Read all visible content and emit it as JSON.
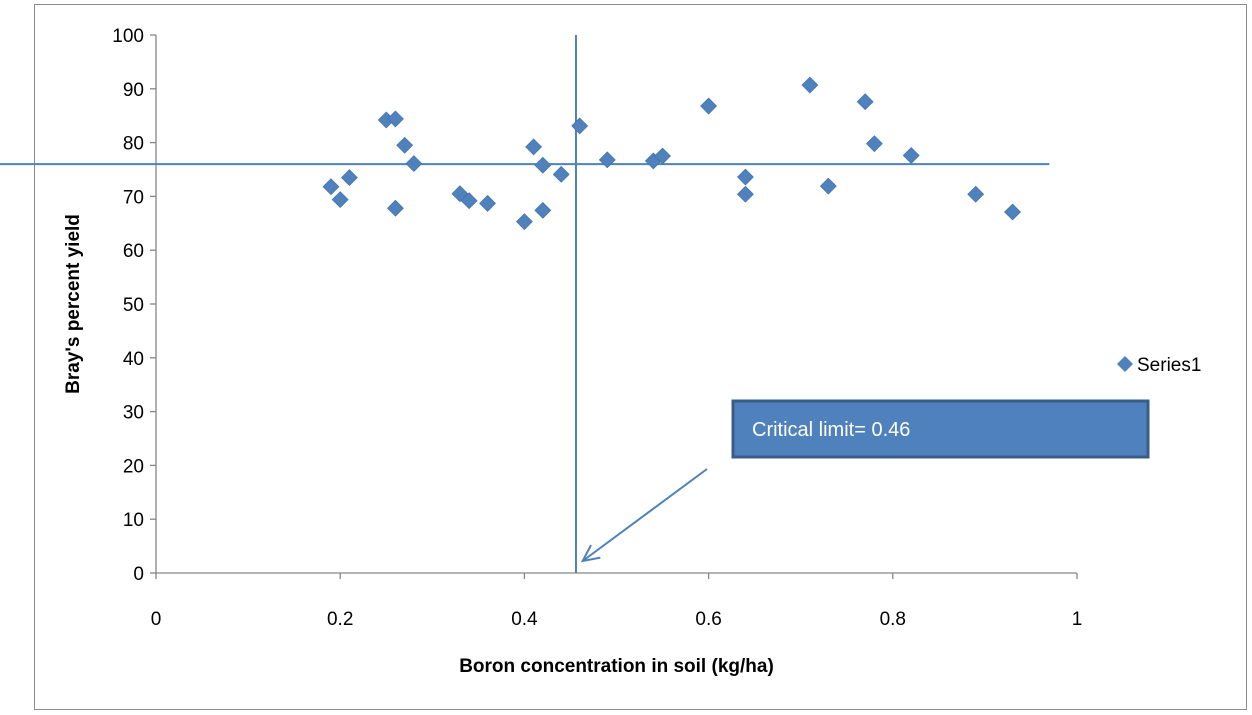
{
  "chart_data": {
    "type": "scatter",
    "title": "",
    "xlabel": "Boron concentration in soil (kg/ha)",
    "ylabel": "Bray's percent yield",
    "xlim": [
      0,
      1
    ],
    "ylim": [
      0,
      100
    ],
    "x_ticks": [
      "0",
      "0.2",
      "0.4",
      "0.6",
      "0.8",
      "1"
    ],
    "y_ticks": [
      "0",
      "10",
      "20",
      "30",
      "40",
      "50",
      "60",
      "70",
      "80",
      "90",
      "100"
    ],
    "grid": false,
    "legend_position": "right",
    "series": [
      {
        "name": "Series1",
        "color": "#4f81bd",
        "marker": "diamond",
        "points": [
          [
            0.19,
            71.8
          ],
          [
            0.2,
            69.4
          ],
          [
            0.21,
            73.5
          ],
          [
            0.25,
            84.2
          ],
          [
            0.26,
            84.4
          ],
          [
            0.26,
            67.8
          ],
          [
            0.27,
            79.5
          ],
          [
            0.28,
            76.1
          ],
          [
            0.33,
            70.5
          ],
          [
            0.34,
            69.2
          ],
          [
            0.36,
            68.7
          ],
          [
            0.4,
            65.3
          ],
          [
            0.41,
            79.2
          ],
          [
            0.42,
            75.8
          ],
          [
            0.42,
            67.4
          ],
          [
            0.44,
            74.1
          ],
          [
            0.46,
            83.1
          ],
          [
            0.49,
            76.8
          ],
          [
            0.54,
            76.6
          ],
          [
            0.55,
            77.5
          ],
          [
            0.6,
            86.8
          ],
          [
            0.64,
            73.6
          ],
          [
            0.64,
            70.4
          ],
          [
            0.71,
            90.7
          ],
          [
            0.73,
            71.9
          ],
          [
            0.77,
            87.6
          ],
          [
            0.78,
            79.8
          ],
          [
            0.82,
            77.6
          ],
          [
            0.89,
            70.4
          ],
          [
            0.93,
            67.1
          ]
        ]
      }
    ],
    "reference_lines": {
      "horizontal_y": 76,
      "vertical_x": 0.456,
      "color": "#4f81bd"
    },
    "annotation": {
      "text": "Critical limit= 0.46",
      "box_color": "#4f81bd",
      "border_color": "#385d8a",
      "arrow_target": [
        0.46,
        0
      ]
    }
  }
}
